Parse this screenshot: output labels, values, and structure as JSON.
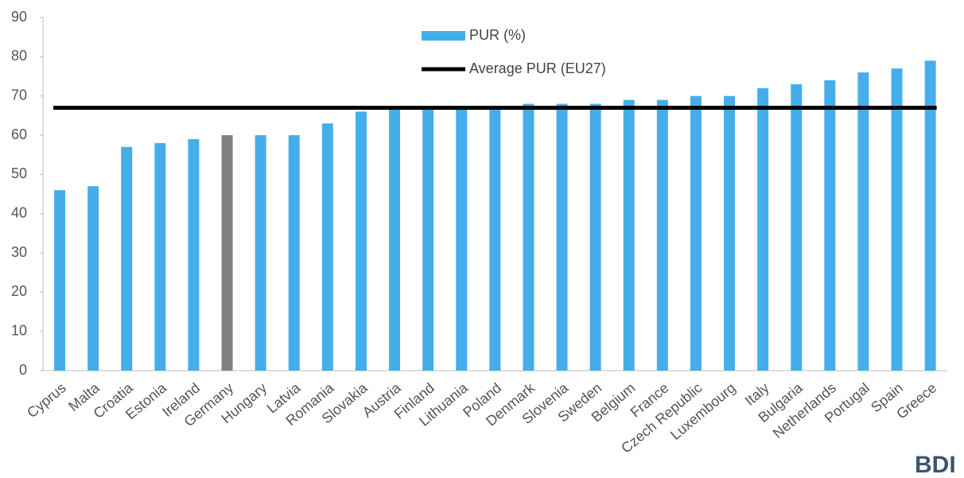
{
  "chart_data": {
    "type": "bar",
    "categories": [
      "Cyprus",
      "Malta",
      "Croatia",
      "Estonia",
      "Ireland",
      "Germany",
      "Hungary",
      "Latvia",
      "Romania",
      "Slovakia",
      "Austria",
      "Finland",
      "Lithuania",
      "Poland",
      "Denmark",
      "Slovenia",
      "Sweden",
      "Belgium",
      "France",
      "Czech Republic",
      "Luxembourg",
      "Italy",
      "Bulgaria",
      "Netherlands",
      "Portugal",
      "Spain",
      "Greece"
    ],
    "series": [
      {
        "name": "PUR (%)",
        "color": "#45aeea",
        "colors": [
          "#45aeea",
          "#45aeea",
          "#45aeea",
          "#45aeea",
          "#45aeea",
          "#808080",
          "#45aeea",
          "#45aeea",
          "#45aeea",
          "#45aeea",
          "#45aeea",
          "#45aeea",
          "#45aeea",
          "#45aeea",
          "#45aeea",
          "#45aeea",
          "#45aeea",
          "#45aeea",
          "#45aeea",
          "#45aeea",
          "#45aeea",
          "#45aeea",
          "#45aeea",
          "#45aeea",
          "#45aeea",
          "#45aeea",
          "#45aeea"
        ],
        "values": [
          46,
          47,
          57,
          58,
          59,
          60,
          60,
          60,
          63,
          66,
          67,
          67,
          67,
          67,
          68,
          68,
          68,
          69,
          69,
          70,
          70,
          72,
          73,
          74,
          76,
          77,
          79
        ]
      }
    ],
    "average": {
      "name": "Average PUR (EU27)",
      "value": 67,
      "color": "#000000"
    },
    "ylim": [
      0,
      90
    ],
    "yticks": [
      0,
      10,
      20,
      30,
      40,
      50,
      60,
      70,
      80,
      90
    ],
    "logo": "BDI"
  }
}
